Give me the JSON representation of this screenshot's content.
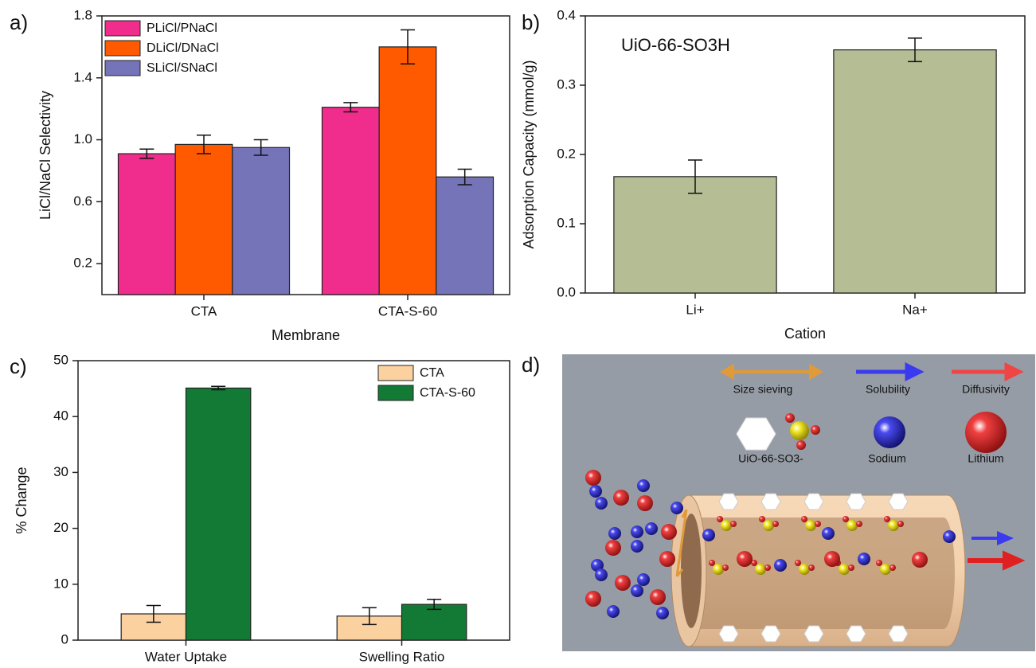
{
  "chart_data": [
    {
      "type": "bar",
      "label": "a)",
      "x_label": "Membrane",
      "y_label": "LiCl/NaCl Selectivity",
      "categories": [
        "CTA",
        "CTA-S-60"
      ],
      "series": [
        {
          "name": "PLiCl/PNaCl",
          "color": "#f02d8c",
          "values": [
            0.91,
            1.21
          ],
          "errors": [
            0.03,
            0.03
          ]
        },
        {
          "name": "DLiCl/DNaCl",
          "color": "#ff5a00",
          "values": [
            0.97,
            1.6
          ],
          "errors": [
            0.06,
            0.11
          ]
        },
        {
          "name": "SLiCl/SNaCl",
          "color": "#7574b8",
          "values": [
            0.95,
            0.76
          ],
          "errors": [
            0.05,
            0.05
          ]
        }
      ],
      "ylim": [
        0,
        1.8
      ],
      "yticks": [
        0.2,
        0.6,
        {
          "value": 1,
          "label": "1.0"
        },
        1.4,
        1.8
      ],
      "legend": "upper left"
    },
    {
      "type": "bar",
      "label": "b)",
      "x_label": "Cation",
      "y_label": "Adsorption Capacity (mmol/g)",
      "annotation": "UiO-66-SO3H",
      "categories": [
        "Li+",
        "Na+"
      ],
      "values": [
        0.168,
        0.351
      ],
      "errors": [
        0.024,
        0.017
      ],
      "color": "#b5bd95",
      "ylim": [
        0,
        0.4
      ],
      "yticks": [
        {
          "value": 0,
          "label": "0.0"
        },
        0.1,
        0.2,
        0.3,
        0.4
      ]
    },
    {
      "type": "bar",
      "label": "c)",
      "y_label": "% Change",
      "categories": [
        "Water Uptake",
        "Swelling Ratio"
      ],
      "series": [
        {
          "name": "CTA",
          "color": "#fcd1a0",
          "values": [
            4.7,
            4.3
          ],
          "errors": [
            1.5,
            1.5
          ]
        },
        {
          "name": "CTA-S-60",
          "color": "#127a35",
          "values": [
            45.1,
            6.4
          ],
          "errors": [
            0.3,
            0.9
          ]
        }
      ],
      "ylim": [
        0,
        50
      ],
      "yticks": [
        0,
        10,
        20,
        30,
        40,
        50
      ],
      "legend": "upper right"
    }
  ],
  "diagram": {
    "label": "d)",
    "size_sieving": "Size sieving",
    "solubility": "Solubility",
    "diffusivity": "Diffusivity",
    "mof": "UiO-66-SO3-",
    "sodium": "Sodium",
    "lithium": "Lithium"
  }
}
